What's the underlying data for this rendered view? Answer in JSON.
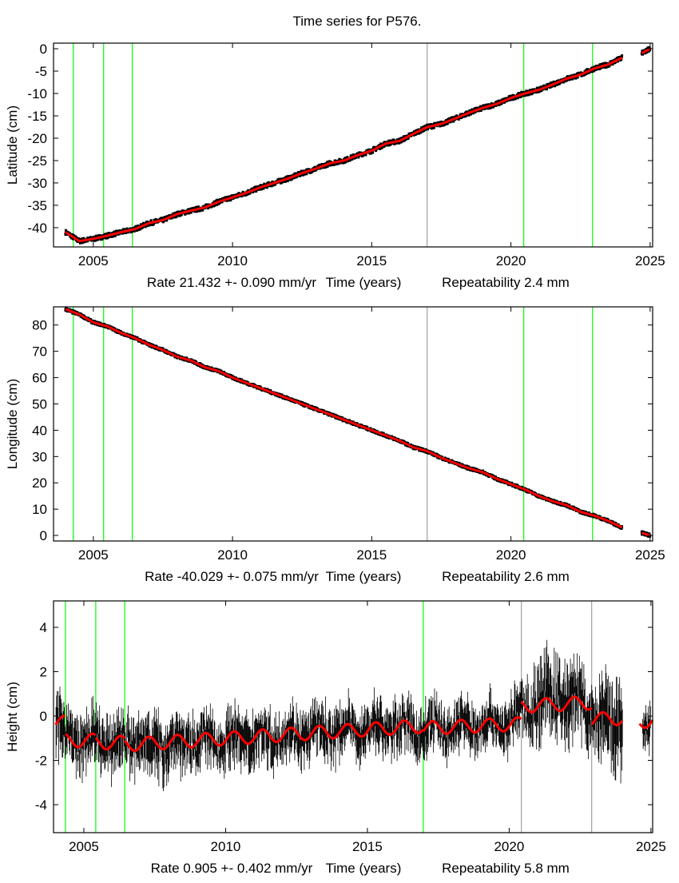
{
  "figure_title": "Time series for P576.",
  "chart_data": [
    {
      "type": "scatter",
      "ylabel": "Latitude (cm)",
      "xlabel": "Time (years)",
      "rate_text": "Rate 21.432 +- 0.090 mm/yr",
      "repeatability_text": "Repeatability 2.4 mm",
      "xlim": [
        2003.57,
        2025.09
      ],
      "ylim": [
        -44.3,
        1.25
      ],
      "xticks": [
        "2005",
        "2010",
        "2015",
        "2020",
        "2025"
      ],
      "yticks": [
        "0",
        "-5",
        "-10",
        "-15",
        "-20",
        "-25",
        "-30",
        "-35",
        "-40"
      ],
      "grid": false,
      "colors": {
        "observations": "#000000",
        "model": "#ff0000"
      },
      "breaks": [
        {
          "x": 2004.28,
          "color": "#00ff00"
        },
        {
          "x": 2005.37,
          "color": "#00ff00"
        },
        {
          "x": 2006.4,
          "color": "#00ff00"
        },
        {
          "x": 2016.99,
          "color": "#a0a0a0"
        },
        {
          "x": 2020.46,
          "color": "#00ff00"
        },
        {
          "x": 2022.93,
          "color": "#00ff00"
        }
      ],
      "x": [
        2004.0,
        2004.5,
        2005.0,
        2005.5,
        2006.0,
        2006.5,
        2007.0,
        2007.5,
        2008.0,
        2008.5,
        2009.0,
        2009.5,
        2010.0,
        2010.5,
        2011.0,
        2011.5,
        2012.0,
        2012.5,
        2013.0,
        2013.5,
        2014.0,
        2014.5,
        2015.0,
        2015.5,
        2016.0,
        2016.5,
        2017.0,
        2017.5,
        2018.0,
        2018.5,
        2019.0,
        2019.5,
        2020.0,
        2020.5,
        2021.0,
        2021.5,
        2022.0,
        2022.5,
        2023.0,
        2023.5,
        2024.0,
        null,
        2024.7,
        2025.0
      ],
      "y": [
        -41.0,
        -43.0,
        -42.5,
        -41.8,
        -41.0,
        -40.3,
        -39.0,
        -38.3,
        -37.0,
        -36.2,
        -35.5,
        -34.2,
        -33.2,
        -32.2,
        -31.0,
        -30.0,
        -29.0,
        -27.8,
        -26.8,
        -25.6,
        -25.0,
        -23.8,
        -22.8,
        -21.2,
        -20.6,
        -19.0,
        -17.5,
        -16.8,
        -15.6,
        -14.3,
        -13.2,
        -12.3,
        -11.0,
        -10.0,
        -9.2,
        -8.0,
        -6.7,
        -5.8,
        -4.4,
        -3.5,
        -2.0,
        null,
        -1.0,
        0.0
      ]
    },
    {
      "type": "scatter",
      "ylabel": "Longitude (cm)",
      "xlabel": "Time (years)",
      "rate_text": "Rate -40.029 +- 0.075 mm/yr",
      "repeatability_text": "Repeatability 2.6 mm",
      "xlim": [
        2003.57,
        2025.09
      ],
      "ylim": [
        -2.1,
        86.9
      ],
      "xticks": [
        "2005",
        "2010",
        "2015",
        "2020",
        "2025"
      ],
      "yticks": [
        "0",
        "10",
        "20",
        "30",
        "40",
        "50",
        "60",
        "70",
        "80"
      ],
      "grid": false,
      "colors": {
        "observations": "#000000",
        "model": "#ff0000"
      },
      "breaks": [
        {
          "x": 2004.28,
          "color": "#00ff00"
        },
        {
          "x": 2005.37,
          "color": "#00ff00"
        },
        {
          "x": 2006.4,
          "color": "#00ff00"
        },
        {
          "x": 2016.99,
          "color": "#a0a0a0"
        },
        {
          "x": 2020.46,
          "color": "#00ff00"
        },
        {
          "x": 2022.93,
          "color": "#00ff00"
        }
      ],
      "x": [
        2004.0,
        2004.5,
        2005.0,
        2005.5,
        2006.0,
        2006.5,
        2007.0,
        2007.5,
        2008.0,
        2008.5,
        2009.0,
        2009.5,
        2010.0,
        2010.5,
        2011.0,
        2011.5,
        2012.0,
        2012.5,
        2013.0,
        2013.5,
        2014.0,
        2014.5,
        2015.0,
        2015.5,
        2016.0,
        2016.5,
        2017.0,
        2017.5,
        2018.0,
        2018.5,
        2019.0,
        2019.5,
        2020.0,
        2020.5,
        2021.0,
        2021.5,
        2022.0,
        2022.5,
        2023.0,
        2023.5,
        2024.0,
        null,
        2024.7,
        2025.0
      ],
      "y": [
        86,
        84,
        81,
        79.5,
        77,
        75,
        72.5,
        70.5,
        68,
        66.5,
        64,
        62.5,
        60,
        58,
        56,
        54,
        52,
        50,
        48,
        46,
        44,
        42,
        40,
        38,
        36,
        33.5,
        32,
        29.5,
        27.5,
        25.5,
        24,
        21.5,
        19.5,
        17.5,
        15,
        13,
        11.5,
        9,
        7.5,
        5.5,
        3,
        null,
        1,
        0
      ]
    },
    {
      "type": "scatter",
      "ylabel": "Height (cm)",
      "xlabel": "Time (years)",
      "rate_text": "Rate 0.905 +- 0.402 mm/yr",
      "repeatability_text": "Repeatability 5.8 mm",
      "xlim": [
        2003.93,
        2025.06
      ],
      "ylim": [
        -5.26,
        5.19
      ],
      "xticks": [
        "2005",
        "2010",
        "2015",
        "2020",
        "2025"
      ],
      "yticks": [
        "-4",
        "-2",
        "0",
        "2",
        "4"
      ],
      "grid": false,
      "colors": {
        "observations": "#000000",
        "model": "#ff0000"
      },
      "breaks": [
        {
          "x": 2004.35,
          "color": "#00ff00"
        },
        {
          "x": 2005.42,
          "color": "#00ff00"
        },
        {
          "x": 2006.44,
          "color": "#00ff00"
        },
        {
          "x": 2016.97,
          "color": "#00ff00"
        },
        {
          "x": 2020.43,
          "color": "#a0a0a0"
        },
        {
          "x": 2022.91,
          "color": "#a0a0a0"
        }
      ],
      "x": [
        2004.0,
        2004.5,
        2005.0,
        2005.5,
        2006.0,
        2006.5,
        2007.0,
        2007.5,
        2008.0,
        2008.5,
        2009.0,
        2009.5,
        2010.0,
        2010.5,
        2011.0,
        2011.5,
        2012.0,
        2012.5,
        2013.0,
        2013.5,
        2014.0,
        2014.5,
        2015.0,
        2015.5,
        2016.0,
        2016.5,
        2017.0,
        2017.5,
        2018.0,
        2018.5,
        2019.0,
        2019.5,
        2020.0,
        2020.5,
        2021.0,
        2021.5,
        2022.0,
        2022.5,
        2023.0,
        2023.5,
        2024.0,
        null,
        2024.7,
        2025.0
      ],
      "y": [
        -0.3,
        -1.0,
        -1.2,
        -1.1,
        -1.3,
        -1.1,
        -1.2,
        -1.4,
        -1.2,
        -1.3,
        -1.1,
        -1.2,
        -1.0,
        -1.1,
        -0.9,
        -1.0,
        -0.8,
        -0.9,
        -0.7,
        -0.8,
        -0.6,
        -0.7,
        -0.5,
        -0.6,
        -0.4,
        -0.6,
        -0.7,
        -0.5,
        -0.6,
        -0.4,
        -0.5,
        -0.3,
        -0.4,
        0.3,
        0.6,
        0.9,
        0.6,
        0.8,
        -0.2,
        -0.5,
        -0.3,
        null,
        -0.3,
        -0.3
      ],
      "y_spread": [
        1.5,
        1.4,
        1.3,
        1.3,
        1.3,
        1.3,
        1.4,
        1.5,
        1.4,
        1.4,
        1.3,
        1.3,
        1.3,
        1.3,
        1.3,
        1.3,
        1.2,
        1.2,
        1.2,
        1.2,
        1.2,
        1.2,
        1.2,
        1.2,
        1.2,
        1.2,
        1.3,
        1.2,
        1.2,
        1.2,
        1.2,
        1.2,
        1.2,
        1.2,
        2.0,
        1.8,
        2.2,
        1.6,
        1.4,
        2.2,
        2.0,
        null,
        1.0,
        1.0
      ],
      "model": {
        "annual_amplitude": 0.3,
        "segments": [
          {
            "from": 2004.0,
            "to": 2004.35,
            "start": -0.3,
            "end": -0.3
          },
          {
            "from": 2004.35,
            "to": 2005.42,
            "start": -1.1,
            "end": -1.1
          },
          {
            "from": 2005.42,
            "to": 2006.44,
            "start": -1.2,
            "end": -1.2
          },
          {
            "from": 2006.44,
            "to": 2016.97,
            "start": -1.3,
            "end": -0.45
          },
          {
            "from": 2016.97,
            "to": 2020.43,
            "start": -0.55,
            "end": -0.35
          },
          {
            "from": 2020.43,
            "to": 2022.91,
            "start": 0.45,
            "end": 0.6
          },
          {
            "from": 2022.91,
            "to": 2024.0,
            "start": -0.15,
            "end": -0.1
          },
          {
            "from": 2024.6,
            "to": 2025.06,
            "start": -0.25,
            "end": -0.2
          }
        ]
      }
    }
  ]
}
